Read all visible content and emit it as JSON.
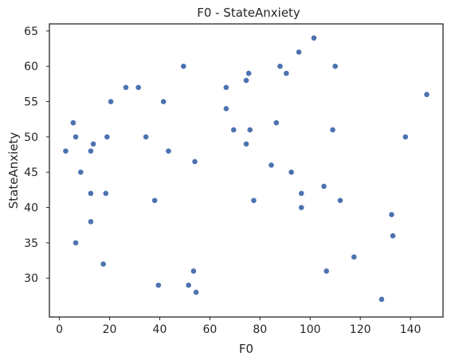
{
  "chart_data": {
    "type": "scatter",
    "title": "F0 - StateAnxiety",
    "xlabel": "F0",
    "ylabel": "StateAnxiety",
    "xlim": [
      -4,
      153
    ],
    "ylim": [
      24.5,
      66
    ],
    "xticks": [
      0,
      20,
      40,
      60,
      80,
      100,
      120,
      140
    ],
    "yticks": [
      30,
      35,
      40,
      45,
      50,
      55,
      60,
      65
    ],
    "grid": false,
    "point_color": "#4c72b0",
    "points": [
      {
        "x": 2.5,
        "y": 48
      },
      {
        "x": 5.5,
        "y": 52
      },
      {
        "x": 6.5,
        "y": 50
      },
      {
        "x": 6.5,
        "y": 35
      },
      {
        "x": 8.5,
        "y": 45
      },
      {
        "x": 12.5,
        "y": 48
      },
      {
        "x": 12.5,
        "y": 42
      },
      {
        "x": 12.5,
        "y": 38
      },
      {
        "x": 13.5,
        "y": 49
      },
      {
        "x": 17.5,
        "y": 32
      },
      {
        "x": 18.5,
        "y": 42
      },
      {
        "x": 19,
        "y": 50
      },
      {
        "x": 20.5,
        "y": 55
      },
      {
        "x": 26.5,
        "y": 57
      },
      {
        "x": 31.5,
        "y": 57
      },
      {
        "x": 34.5,
        "y": 50
      },
      {
        "x": 38,
        "y": 41
      },
      {
        "x": 39.5,
        "y": 29
      },
      {
        "x": 41.5,
        "y": 55
      },
      {
        "x": 43.5,
        "y": 48
      },
      {
        "x": 49.5,
        "y": 60
      },
      {
        "x": 51.5,
        "y": 29
      },
      {
        "x": 53.5,
        "y": 31
      },
      {
        "x": 54,
        "y": 46.5
      },
      {
        "x": 54.5,
        "y": 28
      },
      {
        "x": 66.5,
        "y": 57
      },
      {
        "x": 66.5,
        "y": 54
      },
      {
        "x": 69.5,
        "y": 51
      },
      {
        "x": 74.5,
        "y": 58
      },
      {
        "x": 74.5,
        "y": 49
      },
      {
        "x": 75.5,
        "y": 59
      },
      {
        "x": 76,
        "y": 51
      },
      {
        "x": 77.5,
        "y": 41
      },
      {
        "x": 84.5,
        "y": 46
      },
      {
        "x": 86.5,
        "y": 52
      },
      {
        "x": 88,
        "y": 60
      },
      {
        "x": 90.5,
        "y": 59
      },
      {
        "x": 92.5,
        "y": 45
      },
      {
        "x": 95.5,
        "y": 62
      },
      {
        "x": 96.5,
        "y": 42
      },
      {
        "x": 96.5,
        "y": 40
      },
      {
        "x": 101.5,
        "y": 64
      },
      {
        "x": 105.5,
        "y": 43
      },
      {
        "x": 106.5,
        "y": 31
      },
      {
        "x": 109,
        "y": 51
      },
      {
        "x": 110,
        "y": 60
      },
      {
        "x": 112,
        "y": 41
      },
      {
        "x": 117.5,
        "y": 33
      },
      {
        "x": 128.5,
        "y": 27
      },
      {
        "x": 132.5,
        "y": 39
      },
      {
        "x": 133,
        "y": 36
      },
      {
        "x": 138,
        "y": 50
      },
      {
        "x": 146.5,
        "y": 56
      }
    ]
  }
}
